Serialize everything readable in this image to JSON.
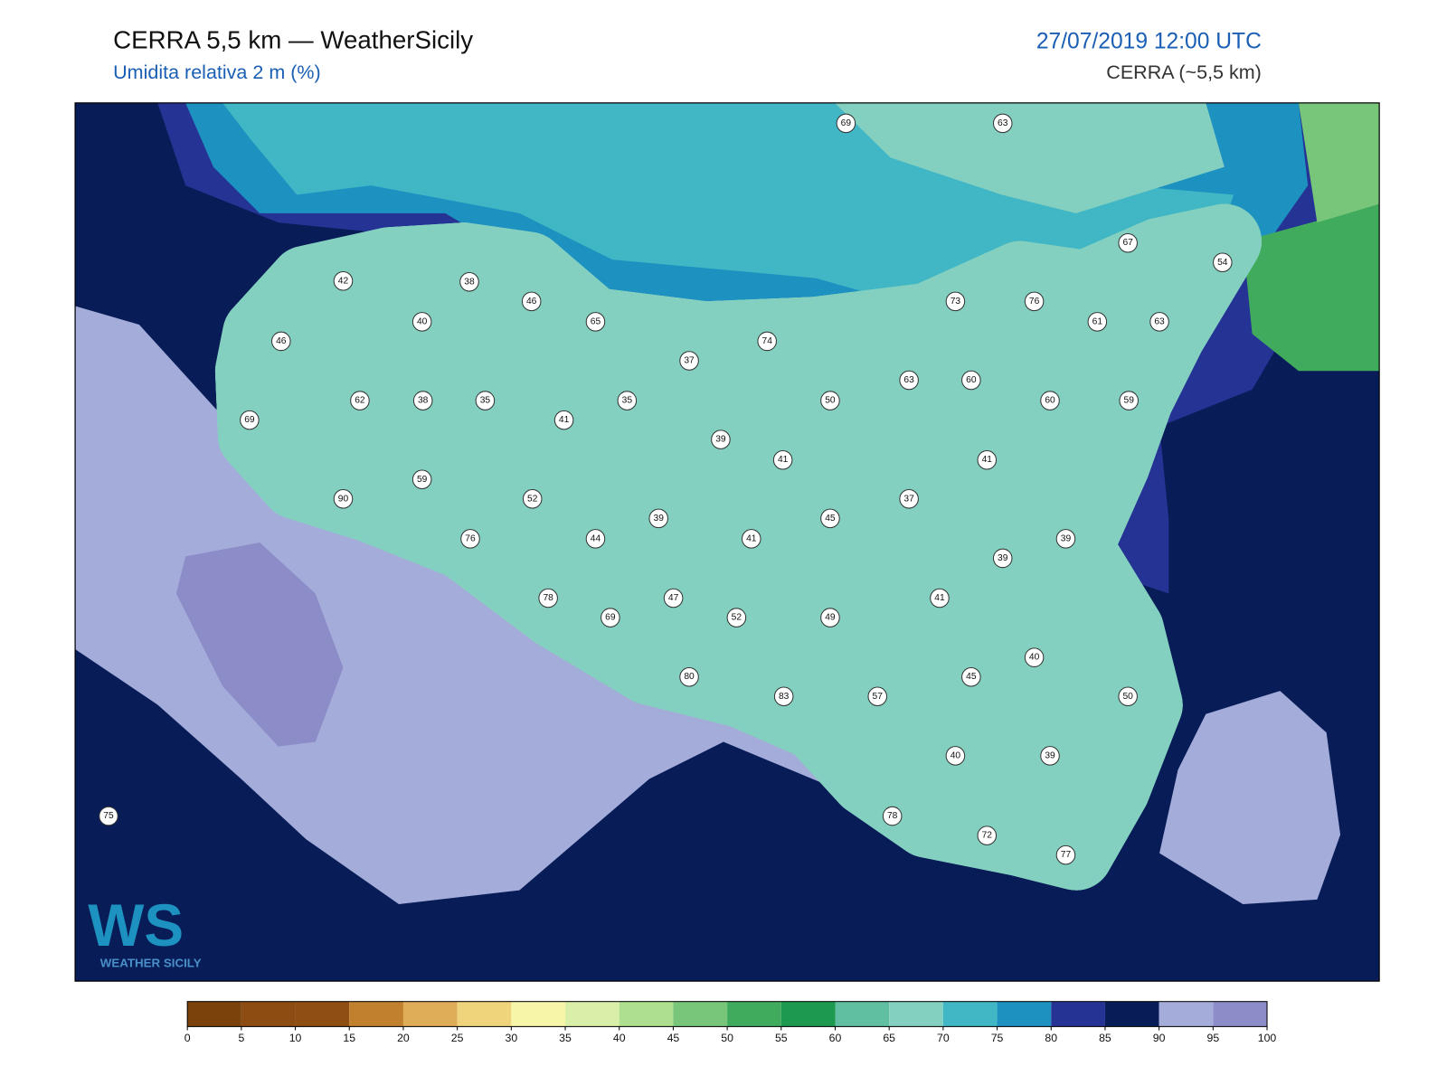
{
  "header": {
    "title": "CERRA 5,5 km — WeatherSicily",
    "subtitle": "Umidita relativa 2 m (%)",
    "datetime": "27/07/2019 12:00 UTC",
    "model": "CERRA (~5,5 km)"
  },
  "logo": {
    "mark": "WS",
    "text": "WEATHER SICILY"
  },
  "stations": {
    "values": [
      69,
      63,
      67,
      54,
      42,
      38,
      46,
      65,
      40,
      73,
      76,
      61,
      63,
      46,
      74,
      37,
      63,
      60,
      62,
      38,
      35,
      35,
      50,
      60,
      59,
      69,
      41,
      39,
      41,
      41,
      59,
      52,
      37,
      90,
      39,
      45,
      76,
      44,
      41,
      39,
      39,
      78,
      47,
      41,
      69,
      52,
      49,
      40,
      80,
      45,
      83,
      57,
      50,
      40,
      39,
      75,
      78,
      72,
      77
    ]
  },
  "colorbar": {
    "ticks": [
      0,
      5,
      10,
      15,
      20,
      25,
      30,
      35,
      40,
      45,
      50,
      55,
      60,
      65,
      70,
      75,
      80,
      85,
      90,
      95,
      100
    ],
    "colors": [
      "#7b420c",
      "#8c4c12",
      "#8f4f14",
      "#c0802e",
      "#dfac57",
      "#f0d47c",
      "#f7f5a8",
      "#d9efa8",
      "#addf8e",
      "#78c679",
      "#41ab5d",
      "#1d9a50",
      "#5fbfa0",
      "#84d0c0",
      "#41b6c4",
      "#1d91c0",
      "#253494",
      "#081d58",
      "#a4acda",
      "#8c8cc8"
    ]
  }
}
